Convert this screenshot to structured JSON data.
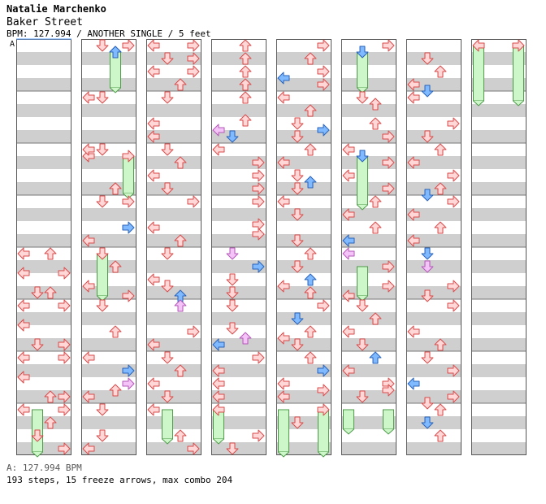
{
  "header": {
    "artist": "Natalie Marchenko",
    "song": "Baker Street",
    "info": "BPM: 127.994 / ANOTHER SINGLE / 5 feet"
  },
  "bpm_marker": "A",
  "footer": {
    "bpm": "A: 127.994 BPM",
    "stats": "193 steps, 15 freeze arrows, max combo 204"
  },
  "colors": {
    "stripe": "#cfcfcf",
    "red_fill": "#ffd7d7",
    "red_stroke": "#d94a4a",
    "blue_fill": "#7fb9ff",
    "blue_stroke": "#2a63b8",
    "pink_fill": "#f4c3f7",
    "pink_stroke": "#b458b8",
    "freeze_fill": "#cdf7c9",
    "freeze_stroke": "#4c9a48"
  },
  "columns": [
    [
      [
        "L",
        29,
        0,
        "R",
        3
      ],
      [
        "R",
        79,
        0,
        "R",
        3
      ],
      [
        "U",
        62,
        0,
        "R",
        3
      ],
      [
        "L",
        29,
        0,
        "R",
        3
      ],
      [
        "L",
        29,
        0,
        "R",
        3
      ],
      [
        "R",
        79,
        0,
        "R",
        3
      ],
      [
        "L",
        29,
        0,
        "R",
        3
      ],
      [
        "L",
        29,
        0,
        "R",
        3
      ],
      [
        "R",
        79,
        0,
        "R",
        3
      ],
      [
        "L",
        29,
        0,
        "R",
        3
      ],
      [
        "U",
        62,
        0,
        "R",
        3
      ],
      [
        "D",
        46,
        0,
        "R",
        3
      ],
      [
        "R",
        79,
        0,
        "R",
        3
      ],
      [
        "U",
        62,
        0,
        "R",
        3
      ],
      [
        "L",
        29,
        0,
        "R",
        3
      ],
      [
        "D",
        46,
        0,
        "R",
        3
      ],
      [
        "R",
        79,
        0,
        "R",
        3
      ],
      [
        "L",
        29,
        0,
        "R",
        3
      ],
      [
        "D",
        46,
        0,
        "R",
        3
      ],
      [
        "R",
        79,
        0,
        "R",
        3
      ],
      [
        "L",
        29,
        0,
        "R",
        3
      ],
      [
        "U",
        62,
        0,
        "R",
        3
      ],
      [
        "R",
        79,
        0,
        "R",
        3
      ]
    ],
    [
      [
        "D",
        126,
        0,
        "R",
        3
      ],
      [
        "U",
        142,
        0,
        "B",
        3
      ],
      [
        "L",
        109,
        0,
        "R",
        3
      ],
      [
        "D",
        126,
        0,
        "R",
        3
      ],
      [
        "L",
        109,
        0,
        "R",
        3
      ],
      [
        "U",
        142,
        0,
        "R",
        3
      ],
      [
        "D",
        126,
        0,
        "R",
        3
      ],
      [
        "R",
        158,
        0,
        "B",
        3
      ],
      [
        "L",
        109,
        0,
        "R",
        3
      ],
      [
        "D",
        126,
        0,
        "R",
        3
      ],
      [
        "U",
        142,
        0,
        "R",
        3
      ],
      [
        "L",
        109,
        0,
        "R",
        3
      ],
      [
        "R",
        158,
        0,
        "R",
        3
      ],
      [
        "D",
        126,
        0,
        "R",
        3
      ],
      [
        "U",
        142,
        0,
        "R",
        3
      ],
      [
        "L",
        109,
        0,
        "R",
        3
      ],
      [
        "R",
        158,
        0,
        "B",
        3
      ],
      [
        "R",
        158,
        0,
        "P",
        3
      ],
      [
        "U",
        142,
        0,
        "R",
        3
      ],
      [
        "L",
        109,
        0,
        "R",
        3
      ],
      [
        "D",
        126,
        0,
        "R",
        3
      ],
      [
        "D",
        126,
        0,
        "R",
        3
      ],
      [
        "L",
        109,
        0,
        "R",
        3
      ],
      [
        "R",
        158,
        0,
        "R",
        3
      ],
      [
        "U",
        142,
        0,
        "B",
        3
      ],
      [
        "D",
        126,
        0,
        "R",
        3
      ],
      [
        "L",
        109,
        0,
        "R",
        3
      ],
      [
        "R",
        158,
        0,
        "R",
        3
      ],
      [
        "U",
        142,
        0,
        "R",
        3
      ],
      [
        "R",
        158,
        0,
        "R",
        3
      ]
    ],
    [
      [
        "R",
        238,
        0,
        "R",
        3
      ],
      [
        "D",
        206,
        0,
        "R",
        3
      ],
      [
        "L",
        189,
        0,
        "R",
        3
      ],
      [
        "U",
        222,
        0,
        "R",
        3
      ],
      [
        "D",
        206,
        0,
        "R",
        3
      ],
      [
        "L",
        189,
        0,
        "R",
        3
      ],
      [
        "L",
        189,
        0,
        "R",
        3
      ],
      [
        "D",
        206,
        0,
        "R",
        3
      ],
      [
        "U",
        222,
        0,
        "R",
        3
      ],
      [
        "L",
        189,
        0,
        "R",
        3
      ],
      [
        "D",
        206,
        0,
        "R",
        3
      ],
      [
        "R",
        238,
        0,
        "R",
        3
      ],
      [
        "L",
        189,
        0,
        "R",
        3
      ],
      [
        "U",
        222,
        0,
        "R",
        3
      ],
      [
        "D",
        206,
        0,
        "R",
        3
      ],
      [
        "L",
        189,
        0,
        "R",
        3
      ],
      [
        "D",
        206,
        0,
        "R",
        3
      ],
      [
        "U",
        222,
        0,
        "B",
        3
      ],
      [
        "U",
        222,
        0,
        "P",
        3
      ],
      [
        "R",
        238,
        0,
        "R",
        3
      ],
      [
        "L",
        189,
        0,
        "R",
        3
      ],
      [
        "D",
        206,
        0,
        "R",
        3
      ],
      [
        "U",
        222,
        0,
        "R",
        3
      ],
      [
        "L",
        189,
        0,
        "R",
        3
      ],
      [
        "D",
        206,
        0,
        "R",
        3
      ],
      [
        "L",
        189,
        0,
        "R",
        3
      ],
      [
        "U",
        222,
        0,
        "R",
        3
      ],
      [
        "R",
        238,
        0,
        "R",
        3
      ],
      [
        "L",
        189,
        0,
        "R",
        3
      ],
      [
        "R",
        238,
        0,
        "R",
        3
      ],
      [
        "R",
        238,
        0,
        "R",
        3
      ]
    ],
    [
      [
        "U",
        302,
        0,
        "R",
        3
      ],
      [
        "U",
        302,
        0,
        "R",
        3
      ],
      [
        "U",
        302,
        0,
        "R",
        3
      ],
      [
        "U",
        302,
        0,
        "R",
        3
      ],
      [
        "U",
        302,
        0,
        "R",
        3
      ],
      [
        "U",
        302,
        0,
        "R",
        3
      ],
      [
        "L",
        269,
        0,
        "P",
        3
      ],
      [
        "D",
        286,
        0,
        "B",
        3
      ],
      [
        "L",
        269,
        0,
        "R",
        3
      ],
      [
        "R",
        318,
        0,
        "R",
        3
      ],
      [
        "R",
        318,
        0,
        "R",
        3
      ],
      [
        "R",
        318,
        0,
        "R",
        3
      ],
      [
        "R",
        318,
        0,
        "R",
        3
      ],
      [
        "R",
        318,
        0,
        "R",
        3
      ],
      [
        "R",
        318,
        0,
        "R",
        3
      ],
      [
        "D",
        286,
        0,
        "P",
        3
      ],
      [
        "R",
        318,
        0,
        "B",
        3
      ],
      [
        "D",
        286,
        0,
        "R",
        3
      ],
      [
        "D",
        286,
        0,
        "R",
        3
      ],
      [
        "D",
        286,
        0,
        "R",
        3
      ],
      [
        "D",
        286,
        0,
        "R",
        3
      ],
      [
        "U",
        302,
        0,
        "P",
        3
      ],
      [
        "L",
        269,
        0,
        "B",
        3
      ],
      [
        "R",
        318,
        0,
        "R",
        3
      ],
      [
        "L",
        269,
        0,
        "R",
        3
      ],
      [
        "L",
        269,
        0,
        "R",
        3
      ],
      [
        "L",
        269,
        0,
        "R",
        3
      ],
      [
        "L",
        269,
        0,
        "R",
        3
      ],
      [
        "R",
        318,
        0,
        "R",
        3
      ],
      [
        "D",
        286,
        0,
        "R",
        3
      ]
    ],
    [
      [
        "R",
        398,
        0,
        "R",
        3
      ],
      [
        "U",
        382,
        0,
        "R",
        3
      ],
      [
        "R",
        398,
        0,
        "R",
        3
      ],
      [
        "L",
        349,
        0,
        "B",
        3
      ],
      [
        "R",
        398,
        0,
        "R",
        3
      ],
      [
        "L",
        349,
        0,
        "R",
        3
      ],
      [
        "U",
        382,
        0,
        "R",
        3
      ],
      [
        "D",
        366,
        0,
        "R",
        3
      ],
      [
        "R",
        398,
        0,
        "B",
        3
      ],
      [
        "D",
        366,
        0,
        "R",
        3
      ],
      [
        "U",
        382,
        0,
        "R",
        3
      ],
      [
        "L",
        349,
        0,
        "R",
        3
      ],
      [
        "D",
        366,
        0,
        "R",
        3
      ],
      [
        "U",
        382,
        0,
        "B",
        3
      ],
      [
        "D",
        366,
        0,
        "R",
        3
      ],
      [
        "L",
        349,
        0,
        "R",
        3
      ],
      [
        "D",
        366,
        0,
        "R",
        3
      ],
      [
        "D",
        366,
        0,
        "R",
        3
      ],
      [
        "U",
        382,
        0,
        "R",
        3
      ],
      [
        "D",
        366,
        0,
        "R",
        3
      ],
      [
        "U",
        382,
        0,
        "B",
        3
      ],
      [
        "L",
        349,
        0,
        "R",
        3
      ],
      [
        "U",
        382,
        0,
        "R",
        3
      ],
      [
        "R",
        398,
        0,
        "R",
        3
      ],
      [
        "D",
        366,
        0,
        "B",
        3
      ],
      [
        "U",
        382,
        0,
        "R",
        3
      ],
      [
        "L",
        349,
        0,
        "R",
        3
      ],
      [
        "D",
        366,
        0,
        "R",
        3
      ],
      [
        "U",
        382,
        0,
        "R",
        3
      ],
      [
        "R",
        398,
        0,
        "B",
        3
      ],
      [
        "L",
        349,
        0,
        "R",
        3
      ],
      [
        "R",
        398,
        0,
        "R",
        3
      ],
      [
        "L",
        349,
        0,
        "R",
        3
      ],
      [
        "R",
        398,
        0,
        "R",
        3
      ],
      [
        "D",
        366,
        0,
        "R",
        3
      ]
    ],
    [
      [
        "R",
        478,
        0,
        "R",
        3
      ],
      [
        "D",
        446,
        0,
        "B",
        3
      ],
      [
        "D",
        446,
        0,
        "R",
        3
      ],
      [
        "U",
        462,
        0,
        "R",
        3
      ],
      [
        "U",
        462,
        0,
        "R",
        3
      ],
      [
        "R",
        478,
        0,
        "R",
        3
      ],
      [
        "L",
        429,
        0,
        "R",
        3
      ],
      [
        "D",
        446,
        0,
        "B",
        3
      ],
      [
        "R",
        478,
        0,
        "R",
        3
      ],
      [
        "L",
        429,
        0,
        "R",
        3
      ],
      [
        "R",
        478,
        0,
        "R",
        3
      ],
      [
        "U",
        462,
        0,
        "R",
        3
      ],
      [
        "L",
        429,
        0,
        "R",
        3
      ],
      [
        "U",
        462,
        0,
        "R",
        3
      ],
      [
        "L",
        429,
        0,
        "B",
        3
      ],
      [
        "L",
        429,
        0,
        "P",
        3
      ],
      [
        "R",
        478,
        0,
        "R",
        3
      ],
      [
        "R",
        478,
        0,
        "R",
        3
      ],
      [
        "L",
        429,
        0,
        "R",
        3
      ],
      [
        "D",
        446,
        0,
        "R",
        3
      ],
      [
        "U",
        462,
        0,
        "R",
        3
      ],
      [
        "L",
        429,
        0,
        "R",
        3
      ],
      [
        "D",
        446,
        0,
        "R",
        3
      ],
      [
        "U",
        462,
        0,
        "B",
        3
      ],
      [
        "L",
        429,
        0,
        "R",
        3
      ],
      [
        "R",
        478,
        0,
        "R",
        3
      ],
      [
        "R",
        478,
        0,
        "R",
        3
      ],
      [
        "D",
        446,
        0,
        "R",
        3
      ]
    ],
    [
      [
        "D",
        526,
        0,
        "R",
        3
      ],
      [
        "U",
        542,
        0,
        "R",
        3
      ],
      [
        "L",
        509,
        0,
        "R",
        3
      ],
      [
        "D",
        526,
        0,
        "B",
        3
      ],
      [
        "L",
        509,
        0,
        "R",
        3
      ],
      [
        "R",
        558,
        0,
        "R",
        3
      ],
      [
        "D",
        526,
        0,
        "R",
        3
      ],
      [
        "U",
        542,
        0,
        "R",
        3
      ],
      [
        "L",
        509,
        0,
        "R",
        3
      ],
      [
        "R",
        558,
        0,
        "R",
        3
      ],
      [
        "U",
        542,
        0,
        "R",
        3
      ],
      [
        "D",
        526,
        0,
        "B",
        3
      ],
      [
        "R",
        558,
        0,
        "R",
        3
      ],
      [
        "L",
        509,
        0,
        "R",
        3
      ],
      [
        "U",
        542,
        0,
        "R",
        3
      ],
      [
        "L",
        509,
        0,
        "R",
        3
      ],
      [
        "D",
        526,
        0,
        "B",
        3
      ],
      [
        "D",
        526,
        0,
        "P",
        3
      ],
      [
        "R",
        558,
        0,
        "R",
        3
      ],
      [
        "D",
        526,
        0,
        "R",
        3
      ],
      [
        "R",
        558,
        0,
        "R",
        3
      ],
      [
        "L",
        509,
        0,
        "R",
        3
      ],
      [
        "U",
        542,
        0,
        "R",
        3
      ],
      [
        "D",
        526,
        0,
        "R",
        3
      ],
      [
        "R",
        558,
        0,
        "R",
        3
      ],
      [
        "L",
        509,
        0,
        "B",
        3
      ],
      [
        "R",
        558,
        0,
        "R",
        3
      ],
      [
        "D",
        526,
        0,
        "R",
        3
      ],
      [
        "U",
        542,
        0,
        "R",
        3
      ],
      [
        "D",
        526,
        0,
        "B",
        3
      ],
      [
        "U",
        542,
        0,
        "R",
        3
      ]
    ],
    [
      [
        "L",
        589,
        0,
        "R",
        3
      ],
      [
        "R",
        638,
        0,
        "R",
        3
      ]
    ]
  ]
}
